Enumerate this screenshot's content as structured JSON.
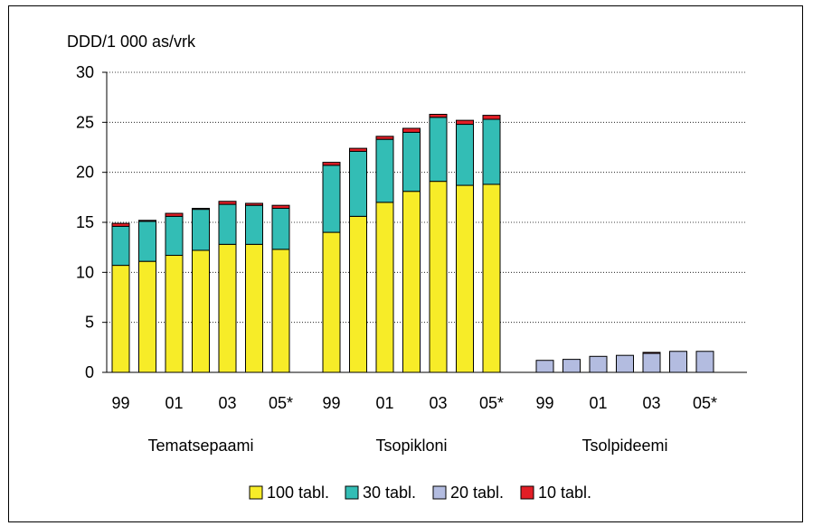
{
  "chart_data": {
    "type": "bar",
    "stacked": true,
    "ylabel": "DDD/1 000 as/vrk",
    "ylim": [
      0,
      30
    ],
    "yticks": [
      0,
      5,
      10,
      15,
      20,
      25,
      30
    ],
    "grid": true,
    "legend_position": "bottom",
    "xtick_labels": [
      "99",
      "01",
      "03",
      "05*"
    ],
    "groups": [
      {
        "name": "Tematsepaami",
        "years": [
          "99",
          "00",
          "01",
          "02",
          "03",
          "04",
          "05*"
        ],
        "values": {
          "100 tabl.": [
            10.7,
            11.1,
            11.7,
            12.2,
            12.8,
            12.8,
            12.3
          ],
          "30 tabl.": [
            3.9,
            4.0,
            3.9,
            4.1,
            4.0,
            3.9,
            4.1
          ],
          "20 tabl.": [
            0,
            0,
            0,
            0,
            0,
            0,
            0
          ],
          "10 tabl.": [
            0.3,
            0.1,
            0.3,
            0.1,
            0.3,
            0.2,
            0.3
          ]
        }
      },
      {
        "name": "Tsopikloni",
        "years": [
          "99",
          "00",
          "01",
          "02",
          "03",
          "04",
          "05*"
        ],
        "values": {
          "100 tabl.": [
            14.0,
            15.6,
            17.0,
            18.1,
            19.1,
            18.7,
            18.8
          ],
          "30 tabl.": [
            6.7,
            6.5,
            6.3,
            5.9,
            6.4,
            6.1,
            6.5
          ],
          "20 tabl.": [
            0,
            0,
            0,
            0,
            0,
            0,
            0
          ],
          "10 tabl.": [
            0.3,
            0.3,
            0.3,
            0.4,
            0.3,
            0.4,
            0.4
          ]
        }
      },
      {
        "name": "Tsolpideemi",
        "years": [
          "99",
          "00",
          "01",
          "02",
          "03",
          "04",
          "05*"
        ],
        "values": {
          "100 tabl.": [
            0,
            0,
            0,
            0,
            0,
            0,
            0
          ],
          "30 tabl.": [
            0,
            0,
            0,
            0,
            0,
            0,
            0
          ],
          "20 tabl.": [
            1.2,
            1.3,
            1.6,
            1.7,
            1.9,
            2.1,
            2.1
          ],
          "10 tabl.": [
            0,
            0,
            0,
            0,
            0.1,
            0,
            0
          ]
        }
      }
    ],
    "series": [
      {
        "name": "100 tabl.",
        "color": "#f7ec28"
      },
      {
        "name": "30 tabl.",
        "color": "#33bdb5"
      },
      {
        "name": "20 tabl.",
        "color": "#b3bce0"
      },
      {
        "name": "10 tabl.",
        "color": "#e21e26"
      }
    ]
  }
}
